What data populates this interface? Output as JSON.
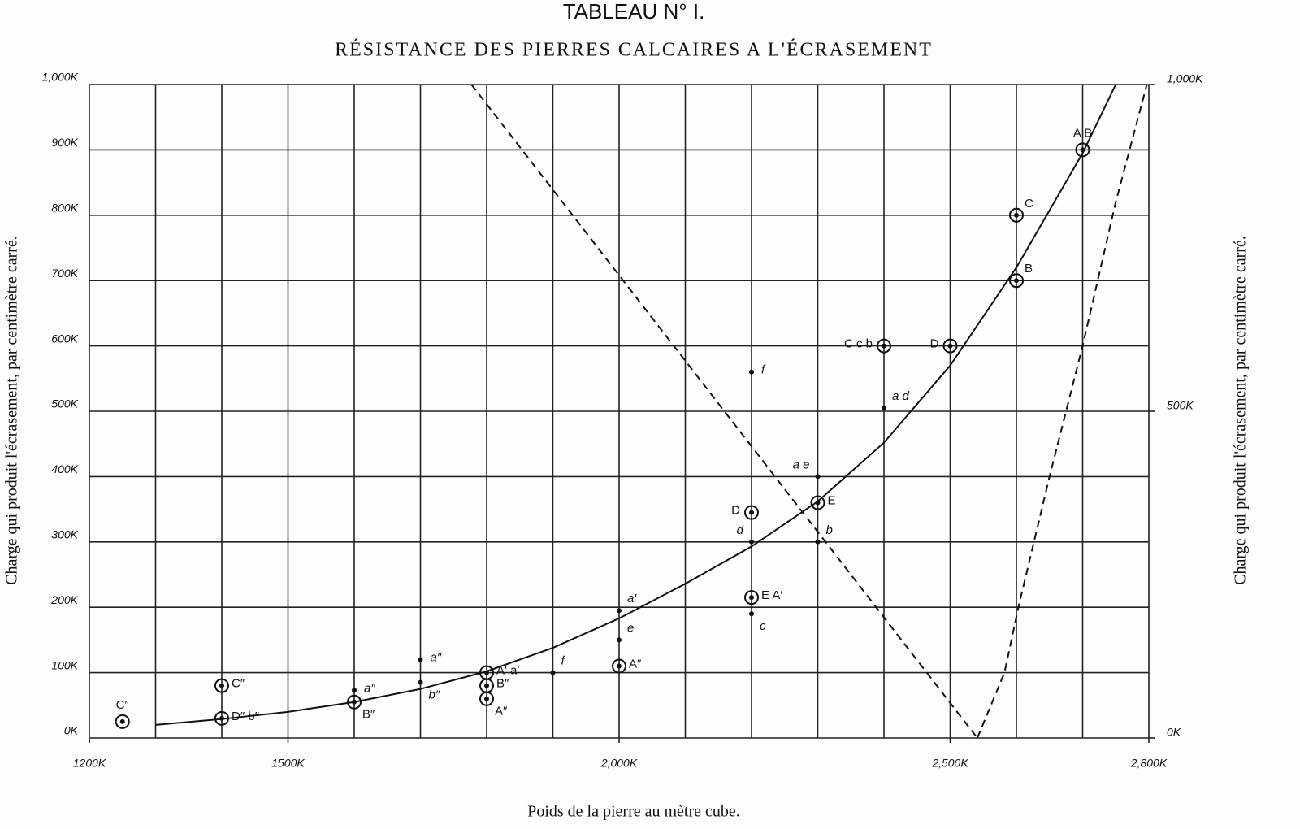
{
  "chart_data": {
    "type": "scatter",
    "title": "TABLEAU N° I.",
    "subtitle": "RÉSISTANCE DES PIERRES CALCAIRES A L'ÉCRASEMENT",
    "xlabel": "Poids de la pierre au mètre cube.",
    "ylabel": "Charge qui produit l'écrasement, par centimètre carré.",
    "y2label": "Charge qui produit l'écrasement, par centimètre carré.",
    "xlim": [
      1200,
      2800
    ],
    "ylim": [
      0,
      1000
    ],
    "y2lim": [
      0,
      1000
    ],
    "xticks": [
      {
        "value": 1200,
        "label": "1200K"
      },
      {
        "value": 1500,
        "label": "1500K"
      },
      {
        "value": 2000,
        "label": "2,000K"
      },
      {
        "value": 2500,
        "label": "2,500K"
      },
      {
        "value": 2800,
        "label": "2,800K"
      }
    ],
    "xgrid": [
      1200,
      1300,
      1400,
      1500,
      1600,
      1700,
      1800,
      1900,
      2000,
      2100,
      2200,
      2300,
      2400,
      2500,
      2600,
      2700,
      2800
    ],
    "yticks": [
      {
        "value": 0,
        "label": "0K"
      },
      {
        "value": 100,
        "label": "100K"
      },
      {
        "value": 200,
        "label": "200K"
      },
      {
        "value": 300,
        "label": "300K"
      },
      {
        "value": 400,
        "label": "400K"
      },
      {
        "value": 500,
        "label": "500K"
      },
      {
        "value": 600,
        "label": "600K"
      },
      {
        "value": 700,
        "label": "700K"
      },
      {
        "value": 800,
        "label": "800K"
      },
      {
        "value": 900,
        "label": "900K"
      },
      {
        "value": 1000,
        "label": "1,000K"
      }
    ],
    "y2ticks": [
      {
        "value": 0,
        "label": "0K"
      },
      {
        "value": 500,
        "label": "500K"
      },
      {
        "value": 1000,
        "label": "1,000K"
      }
    ],
    "grid": true,
    "series": [
      {
        "marker": "circled-dot",
        "color": "#111111",
        "x": [
          1250,
          1400,
          1400,
          1600,
          1800,
          1800,
          1800,
          2000,
          2200,
          2200,
          2300,
          2400,
          2500,
          2600,
          2600,
          2700
        ],
        "y": [
          25,
          80,
          30,
          55,
          100,
          80,
          60,
          110,
          215,
          345,
          360,
          600,
          600,
          700,
          800,
          900
        ],
        "labels": [
          "C″",
          "C″",
          "D″ b″",
          "B″",
          "A′ a′",
          "B″",
          "A″",
          "A″",
          "E A′",
          "D",
          "E",
          "C c b",
          "D",
          "B",
          "C",
          "A   B"
        ],
        "label_sides": [
          "above",
          "right",
          "right",
          "below-right",
          "right",
          "right",
          "below-right",
          "right",
          "right",
          "left",
          "right",
          "left",
          "left",
          "right-above",
          "right-above",
          "above"
        ]
      },
      {
        "marker": "dot",
        "color": "#111111",
        "x": [
          1600,
          1700,
          1700,
          1900,
          2000,
          2000,
          2200,
          2200,
          2200,
          2300,
          2300,
          2400
        ],
        "y": [
          73,
          120,
          85,
          100,
          195,
          150,
          560,
          300,
          190,
          400,
          300,
          505
        ],
        "labels": [
          "a″",
          "a″",
          "b″",
          "f",
          "a′",
          "e",
          "f",
          "d",
          "c",
          "a e",
          "b",
          "a d"
        ],
        "label_sides": [
          "right",
          "right",
          "below-right",
          "right-above",
          "right-above",
          "right-above",
          "right",
          "left-above",
          "below-right",
          "left-above",
          "right-above",
          "right-above"
        ]
      },
      {
        "marker": "line",
        "style": "solid",
        "color": "#111111",
        "x": [
          1300,
          1400,
          1500,
          1600,
          1700,
          1800,
          1900,
          2000,
          2100,
          2200,
          2300,
          2400,
          2500,
          2600,
          2700,
          2750
        ],
        "y": [
          20,
          29,
          40,
          55,
          75,
          102,
          138,
          183,
          236,
          293,
          362,
          452,
          570,
          720,
          895,
          1000
        ]
      },
      {
        "marker": "line",
        "style": "dashed",
        "color": "#111111",
        "x": [
          1777,
          2541
        ],
        "y": [
          1000,
          0
        ]
      },
      {
        "marker": "line",
        "style": "dashed",
        "color": "#111111",
        "x": [
          2541,
          2582,
          2603,
          2650,
          2700,
          2750,
          2797
        ],
        "y": [
          0,
          100,
          200,
          400,
          600,
          820,
          1000
        ]
      }
    ]
  }
}
